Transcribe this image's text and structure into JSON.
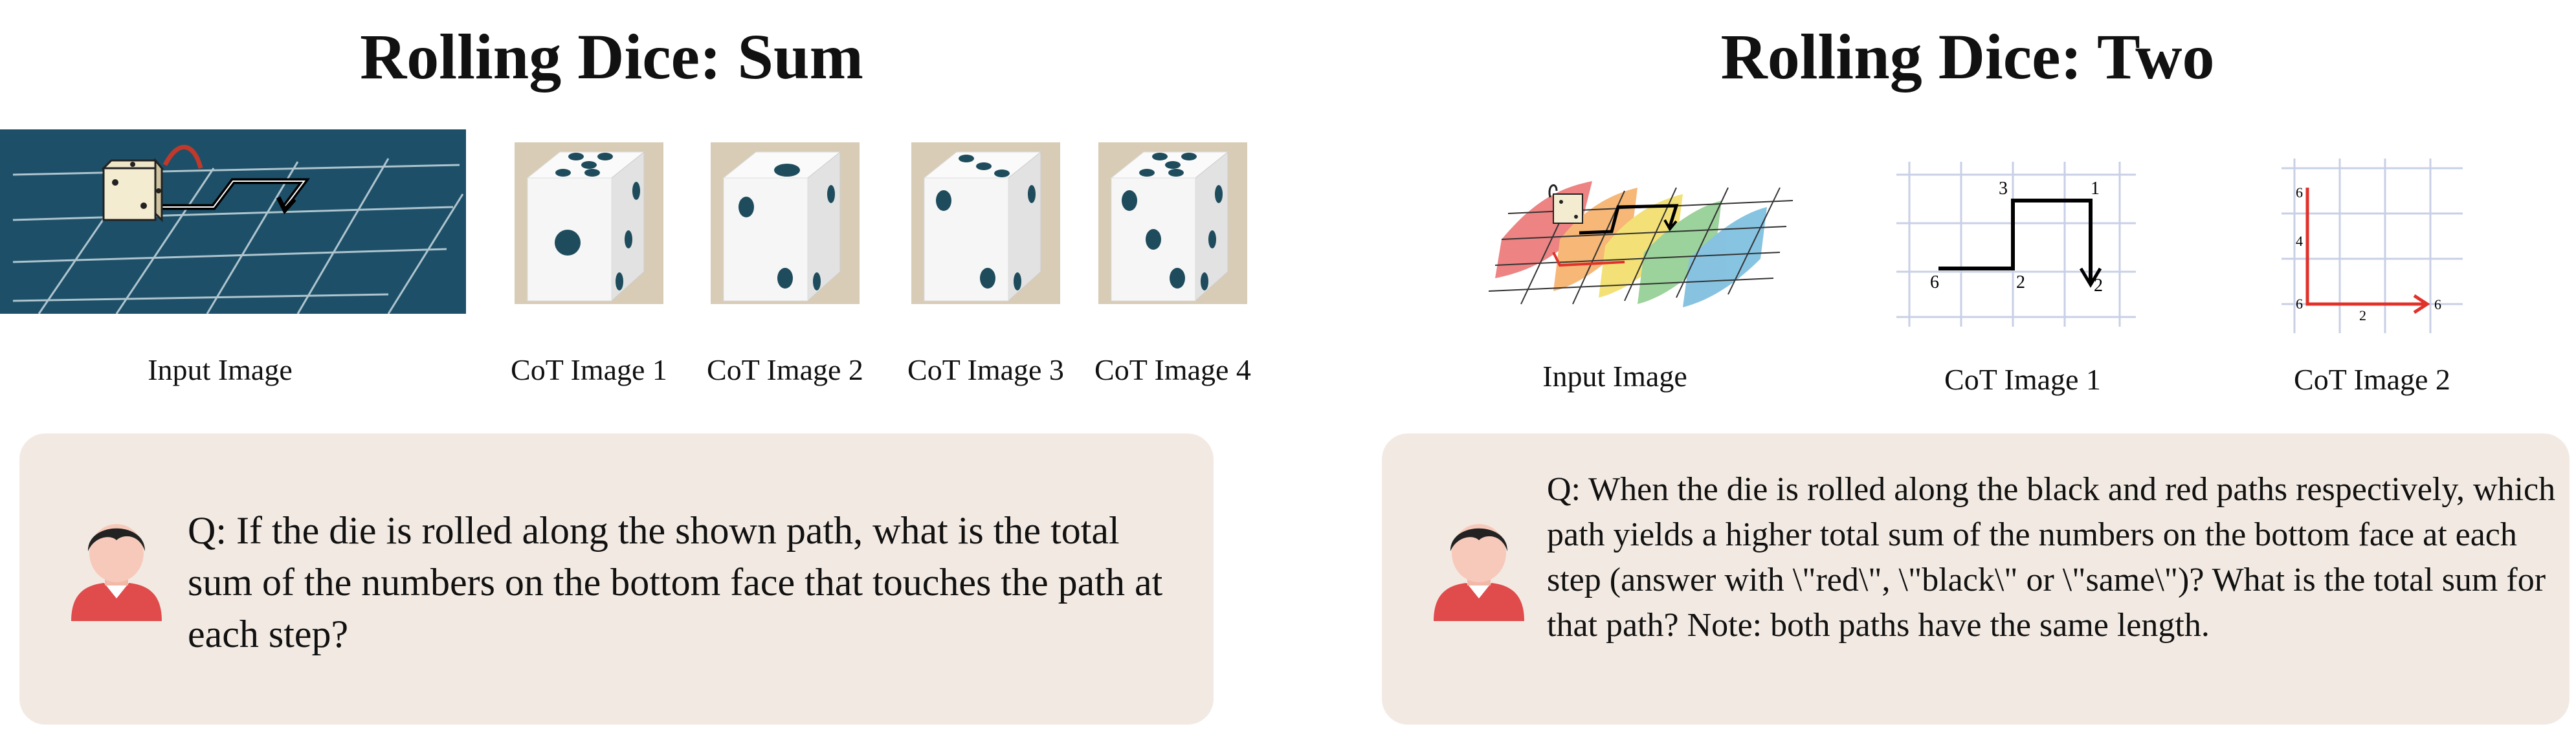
{
  "left_panel": {
    "title": "Rolling Dice: Sum",
    "captions": [
      "Input Image",
      "CoT Image 1",
      "CoT Image 2",
      "CoT Image 3",
      "CoT Image 4"
    ],
    "question": "Q: If the die is rolled along the shown path, what is the total sum of the numbers on the bottom face that touches the path at each step?"
  },
  "right_panel": {
    "title": "Rolling Dice: Two",
    "captions": [
      "Input Image",
      "CoT Image 1",
      "CoT Image 2"
    ],
    "question": "Q: When the die is rolled along the black and red paths respectively, which path yields a higher total sum of the numbers on the bottom face at each step (answer with \\\"red\\\", \\\"black\\\" or \\\"same\\\")? What is the total sum for that path? Note: both paths have the same length.",
    "cot1_labels": {
      "a": "6",
      "b": "2",
      "c": "3",
      "d": "1",
      "e": "2"
    },
    "cot2_labels": {
      "top": "6",
      "mid": "4",
      "corner": "6",
      "bottom": "2",
      "end": "6"
    }
  },
  "colors": {
    "board": "#1d5068",
    "pip": "#1f4c5c",
    "dice_bg": "#d8ccb6",
    "qbox": "#f2eae2",
    "red": "#e0322a"
  }
}
